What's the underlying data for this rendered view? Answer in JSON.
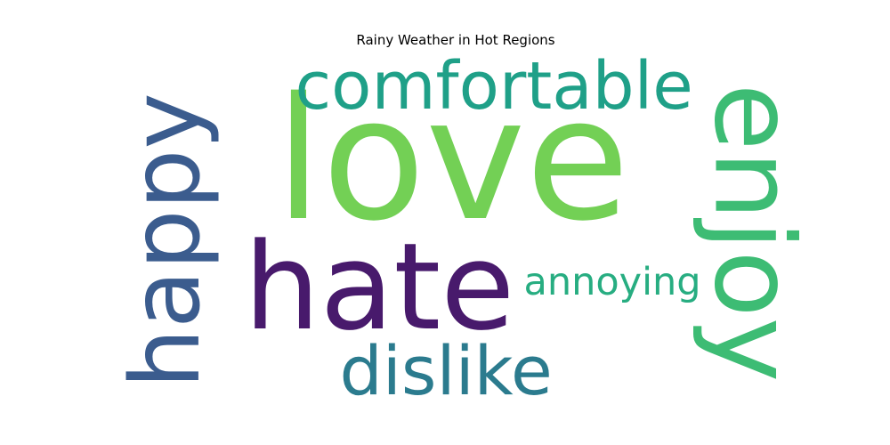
{
  "chart_data": {
    "type": "wordcloud",
    "title": "Rainy Weather in Hot Regions",
    "words": [
      {
        "text": "love",
        "weight": 1.0,
        "color": "#73d055"
      },
      {
        "text": "hate",
        "weight": 0.78,
        "color": "#481a6c"
      },
      {
        "text": "enjoy",
        "weight": 0.72,
        "color": "#3dbc74"
      },
      {
        "text": "happy",
        "weight": 0.63,
        "color": "#3b5c8e"
      },
      {
        "text": "comfortable",
        "weight": 0.55,
        "color": "#1fa088"
      },
      {
        "text": "dislike",
        "weight": 0.55,
        "color": "#2b7b8e"
      },
      {
        "text": "annoying",
        "weight": 0.33,
        "color": "#27ad81"
      }
    ]
  }
}
